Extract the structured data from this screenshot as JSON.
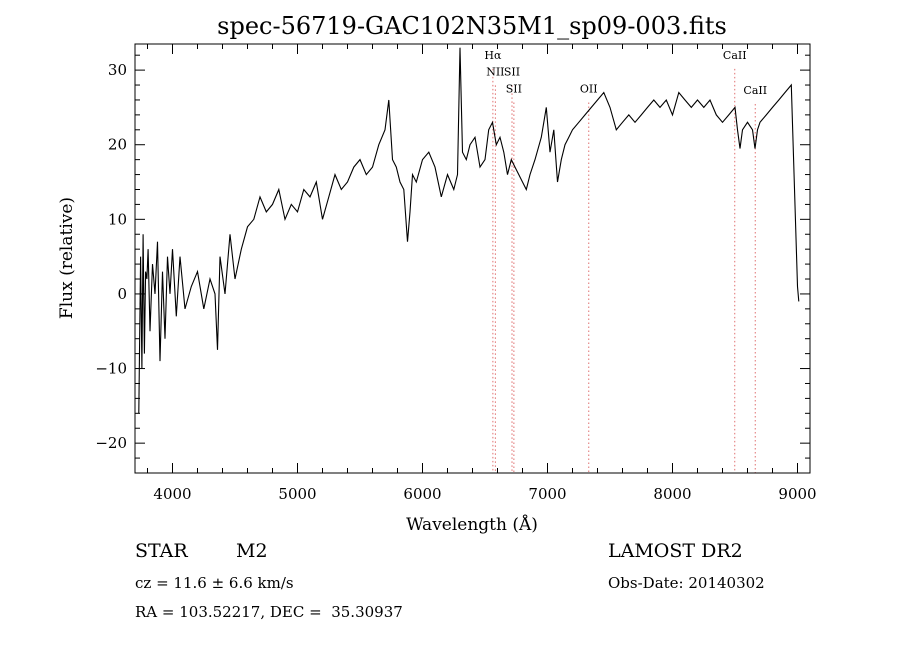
{
  "chart_data": {
    "type": "line",
    "title": "spec-56719-GAC102N35M1_sp09-003.fits",
    "xlabel": "Wavelength (Å)",
    "ylabel": "Flux (relative)",
    "xlim": [
      3700,
      9100
    ],
    "ylim": [
      -24,
      33.5
    ],
    "xticks": [
      4000,
      5000,
      6000,
      7000,
      8000,
      9000
    ],
    "yticks": [
      -20,
      -10,
      0,
      10,
      20,
      30
    ],
    "xtick_labels": [
      "4000",
      "5000",
      "6000",
      "7000",
      "8000",
      "9000"
    ],
    "ytick_labels": [
      "−20",
      "−10",
      "0",
      "10",
      "20",
      "30"
    ],
    "grid": false,
    "lines": [
      {
        "label": "Hα",
        "x": 6563,
        "label_y": 31.5
      },
      {
        "label": "NII",
        "x": 6583,
        "label_y": 29.3
      },
      {
        "label": "SII",
        "x": 6716,
        "label_y": 29.3
      },
      {
        "label": "SII",
        "x": 6731,
        "label_y": 27.0
      },
      {
        "label": "OII",
        "x": 7330,
        "label_y": 27.0
      },
      {
        "label": "CaII",
        "x": 8498,
        "label_y": 31.5
      },
      {
        "label": "CaII",
        "x": 8662,
        "label_y": 26.8
      }
    ],
    "line_marker_color": "#e07070",
    "series": [
      {
        "color": "#000000",
        "x": [
          3730,
          3745,
          3755,
          3765,
          3775,
          3785,
          3795,
          3805,
          3820,
          3840,
          3860,
          3880,
          3900,
          3920,
          3940,
          3960,
          3980,
          4000,
          4030,
          4060,
          4100,
          4150,
          4200,
          4250,
          4300,
          4340,
          4360,
          4380,
          4420,
          4460,
          4500,
          4550,
          4600,
          4650,
          4700,
          4750,
          4800,
          4850,
          4900,
          4950,
          5000,
          5050,
          5100,
          5150,
          5200,
          5250,
          5300,
          5350,
          5400,
          5450,
          5500,
          5550,
          5600,
          5650,
          5700,
          5730,
          5760,
          5790,
          5820,
          5850,
          5880,
          5900,
          5920,
          5950,
          6000,
          6050,
          6100,
          6150,
          6200,
          6250,
          6280,
          6300,
          6320,
          6350,
          6380,
          6420,
          6460,
          6500,
          6530,
          6560,
          6590,
          6620,
          6650,
          6680,
          6710,
          6740,
          6770,
          6800,
          6830,
          6860,
          6900,
          6950,
          6990,
          7020,
          7050,
          7080,
          7110,
          7140,
          7170,
          7200,
          7250,
          7300,
          7350,
          7400,
          7450,
          7500,
          7550,
          7600,
          7650,
          7700,
          7750,
          7800,
          7850,
          7900,
          7950,
          8000,
          8050,
          8100,
          8150,
          8200,
          8250,
          8300,
          8350,
          8400,
          8450,
          8500,
          8520,
          8540,
          8560,
          8600,
          8640,
          8660,
          8680,
          8700,
          8750,
          8800,
          8850,
          8900,
          8950,
          9000,
          9010
        ],
        "y": [
          -16,
          5,
          -10,
          8,
          -8,
          3,
          2,
          6,
          -5,
          4,
          0,
          7,
          -9,
          3,
          -6,
          5,
          0,
          6,
          -3,
          5,
          -2,
          1,
          3,
          -2,
          2,
          0,
          -7.5,
          5,
          0,
          8,
          2,
          6,
          9,
          10,
          13,
          11,
          12,
          14,
          10,
          12,
          11,
          14,
          13,
          15,
          10,
          13,
          16,
          14,
          15,
          17,
          18,
          16,
          17,
          20,
          22,
          26,
          18,
          17,
          15,
          14,
          7,
          11,
          16,
          15,
          18,
          19,
          17,
          13,
          16,
          14,
          16,
          33,
          19,
          18,
          20,
          21,
          17,
          18,
          22,
          23,
          20,
          21,
          19,
          16,
          18,
          17,
          16,
          15,
          14,
          16,
          18,
          21,
          25,
          19,
          22,
          15,
          18,
          20,
          21,
          22,
          23,
          24,
          25,
          26,
          27,
          25,
          22,
          23,
          24,
          23,
          24,
          25,
          26,
          25,
          26,
          24,
          27,
          26,
          25,
          26,
          25,
          26,
          24,
          23,
          24,
          25,
          22,
          19.5,
          22,
          23,
          22,
          19.5,
          22,
          23,
          24,
          25,
          26,
          27,
          28,
          1,
          -1
        ]
      }
    ]
  },
  "info": {
    "object_class": "STAR",
    "subclass": "M2",
    "survey": "LAMOST DR2",
    "cz": "cz = 11.6 ± 6.6 km/s",
    "obs_date": "Obs-Date: 20140302",
    "coords": "RA = 103.52217, DEC =  35.30937"
  }
}
